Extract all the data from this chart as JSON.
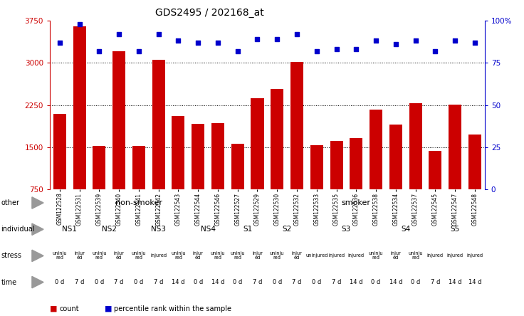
{
  "title": "GDS2495 / 202168_at",
  "samples": [
    "GSM122528",
    "GSM122531",
    "GSM122539",
    "GSM122540",
    "GSM122541",
    "GSM122542",
    "GSM122543",
    "GSM122544",
    "GSM122546",
    "GSM122527",
    "GSM122529",
    "GSM122530",
    "GSM122532",
    "GSM122533",
    "GSM122535",
    "GSM122536",
    "GSM122538",
    "GSM122534",
    "GSM122537",
    "GSM122545",
    "GSM122547",
    "GSM122548"
  ],
  "counts": [
    2100,
    3650,
    1520,
    3200,
    1530,
    3050,
    2050,
    1920,
    1930,
    1560,
    2370,
    2530,
    3010,
    1540,
    1610,
    1660,
    2170,
    1900,
    2280,
    1440,
    2260,
    1730
  ],
  "percentile": [
    87,
    98,
    82,
    92,
    82,
    92,
    88,
    87,
    87,
    82,
    89,
    89,
    92,
    82,
    83,
    83,
    88,
    86,
    88,
    82,
    88,
    87
  ],
  "bar_color": "#cc0000",
  "dot_color": "#0000cc",
  "ymin": 750,
  "ymax": 3750,
  "yticks_left": [
    750,
    1500,
    2250,
    3000,
    3750
  ],
  "yticks_right": [
    0,
    25,
    50,
    75,
    100
  ],
  "grid_values": [
    1500,
    2250,
    3000
  ],
  "other_spans": [
    [
      "non-smoker",
      0,
      9,
      "#90ee90"
    ],
    [
      "smoker",
      9,
      22,
      "#66cc66"
    ]
  ],
  "individual_spans": [
    [
      "NS1",
      0,
      2,
      "#aaccff"
    ],
    [
      "NS2",
      2,
      4,
      "#aaccff"
    ],
    [
      "NS3",
      4,
      7,
      "#aaccff"
    ],
    [
      "NS4",
      7,
      9,
      "#aaccff"
    ],
    [
      "S1",
      9,
      11,
      "#aaccff"
    ],
    [
      "S2",
      11,
      13,
      "#aaccff"
    ],
    [
      "S3",
      13,
      17,
      "#aaccff"
    ],
    [
      "S4",
      17,
      19,
      "#aaccff"
    ],
    [
      "S5",
      19,
      22,
      "#aaccff"
    ]
  ],
  "stress_per_sample": [
    [
      "uninju\nred",
      "#e8b0f0"
    ],
    [
      "injur\ned",
      "#ee60bb"
    ],
    [
      "uninju\nred",
      "#e8b0f0"
    ],
    [
      "injur\ned",
      "#ee60bb"
    ],
    [
      "uninju\nred",
      "#e8b0f0"
    ],
    [
      "injured",
      "#ee60bb"
    ],
    [
      "uninju\nred",
      "#e8b0f0"
    ],
    [
      "injur\ned",
      "#ee60bb"
    ],
    [
      "uninju\nred",
      "#e8b0f0"
    ],
    [
      "uninju\nred",
      "#e8b0f0"
    ],
    [
      "injur\ned",
      "#ee60bb"
    ],
    [
      "uninju\nred",
      "#e8b0f0"
    ],
    [
      "injur\ned",
      "#ee60bb"
    ],
    [
      "uninjured",
      "#e8b0f0"
    ],
    [
      "injured",
      "#ee60bb"
    ],
    [
      "injured",
      "#ee60bb"
    ],
    [
      "uninju\nred",
      "#e8b0f0"
    ],
    [
      "injur\ned",
      "#ee60bb"
    ],
    [
      "uninju\nred",
      "#e8b0f0"
    ],
    [
      "injured",
      "#ee60bb"
    ],
    [
      "injured",
      "#ee60bb"
    ],
    [
      "injured",
      "#ee60bb"
    ]
  ],
  "time_per_sample": [
    [
      "0 d",
      "#f0c878"
    ],
    [
      "7 d",
      "#e0a848"
    ],
    [
      "0 d",
      "#f0c878"
    ],
    [
      "7 d",
      "#e0a848"
    ],
    [
      "0 d",
      "#f0c878"
    ],
    [
      "7 d",
      "#e0a848"
    ],
    [
      "14 d",
      "#e0a848"
    ],
    [
      "0 d",
      "#f0c878"
    ],
    [
      "14 d",
      "#e0a848"
    ],
    [
      "0 d",
      "#f0c878"
    ],
    [
      "7 d",
      "#e0a848"
    ],
    [
      "0 d",
      "#f0c878"
    ],
    [
      "7 d",
      "#e0a848"
    ],
    [
      "0 d",
      "#f0c878"
    ],
    [
      "7 d",
      "#e0a848"
    ],
    [
      "14 d",
      "#e0a848"
    ],
    [
      "0 d",
      "#f0c878"
    ],
    [
      "14 d",
      "#e0a848"
    ],
    [
      "0 d",
      "#f0c878"
    ],
    [
      "7 d",
      "#e0a848"
    ],
    [
      "14 d",
      "#e0a848"
    ],
    [
      "14 d",
      "#e0a848"
    ]
  ]
}
